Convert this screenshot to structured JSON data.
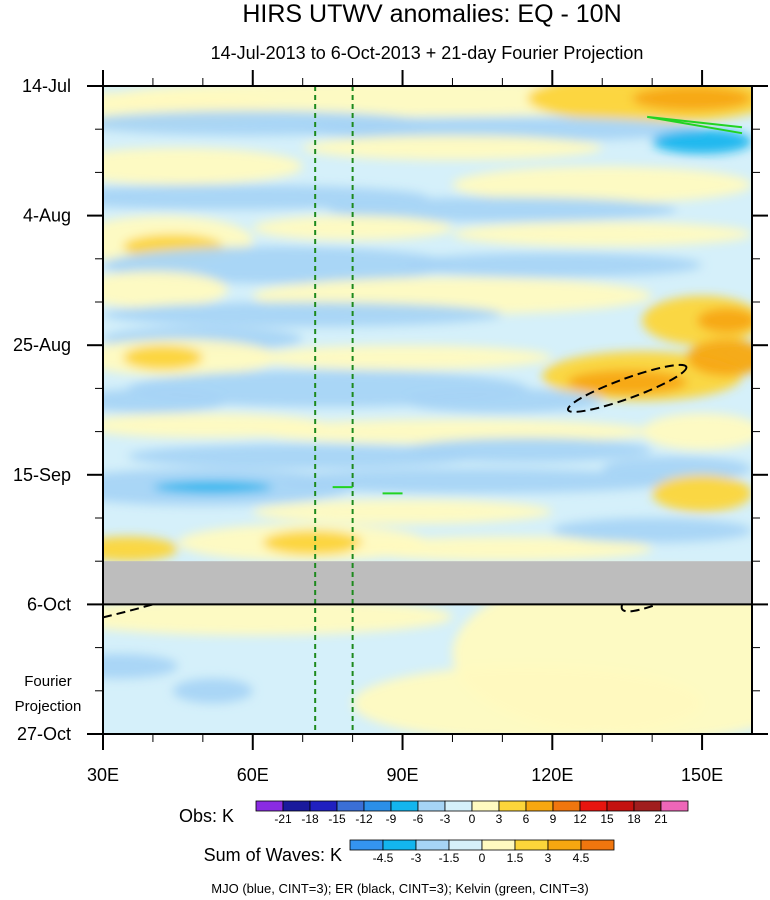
{
  "chart_data": {
    "type": "heatmap",
    "title": "HIRS UTWV anomalies: EQ - 10N",
    "subtitle": "14-Jul-2013 to 6-Oct-2013 + 21-day Fourier Projection",
    "x_range": [
      30,
      160
    ],
    "x_ticks": [
      {
        "value": 30,
        "label": "30E"
      },
      {
        "value": 60,
        "label": "60E"
      },
      {
        "value": 90,
        "label": "90E"
      },
      {
        "value": 120,
        "label": "120E"
      },
      {
        "value": 150,
        "label": "150E"
      }
    ],
    "y_range_days": [
      0,
      105
    ],
    "y_ticks": [
      {
        "day": 0,
        "label": "14-Jul"
      },
      {
        "day": 21,
        "label": "4-Aug"
      },
      {
        "day": 42,
        "label": "25-Aug"
      },
      {
        "day": 63,
        "label": "15-Sep"
      },
      {
        "day": 84,
        "label": "6-Oct"
      },
      {
        "day": 105,
        "label": "27-Oct"
      }
    ],
    "projection_label_line1": "Fourier",
    "projection_label_line2": "Projection",
    "missing_data_days": [
      77,
      84
    ],
    "projection_start_day": 84,
    "mjo_lines_lon": [
      72.5,
      80
    ],
    "obs_colorbar": {
      "label": "Obs: K",
      "levels": [
        "-21",
        "-18",
        "-15",
        "-12",
        "-9",
        "-6",
        "-3",
        "0",
        "3",
        "6",
        "9",
        "12",
        "15",
        "18",
        "21"
      ],
      "colors": [
        "#8a2be2",
        "#1a1a9c",
        "#2020c0",
        "#3b6fd6",
        "#2b8fe8",
        "#13b5ee",
        "#a6d4f5",
        "#d5f0fa",
        "#fffac0",
        "#fcd53a",
        "#f7a710",
        "#f0760e",
        "#e8150f",
        "#c4120f",
        "#a01e1e",
        "#ee66b8"
      ]
    },
    "waves_colorbar": {
      "label": "Sum of Waves: K",
      "levels": [
        "-4.5",
        "-3",
        "-1.5",
        "0",
        "1.5",
        "3",
        "4.5"
      ],
      "colors": [
        "#3494f0",
        "#13b5ee",
        "#a6d4f5",
        "#d5f0fa",
        "#fffac0",
        "#fcd53a",
        "#f7a710",
        "#f0760e"
      ]
    },
    "footnote": "MJO (blue, CINT=3); ER (black, CINT=3); Kelvin (green, CINT=3)",
    "contours": {
      "er_negative": [
        {
          "lon": [
            124,
            146
          ],
          "day": [
            48,
            50
          ]
        }
      ],
      "kelvin": [
        {
          "lon": [
            139,
            158
          ],
          "day": [
            5,
            7
          ]
        },
        {
          "lon": [
            76,
            80
          ],
          "day": [
            65,
            65
          ]
        },
        {
          "lon": [
            86,
            90
          ],
          "day": [
            66,
            66
          ]
        }
      ]
    }
  }
}
